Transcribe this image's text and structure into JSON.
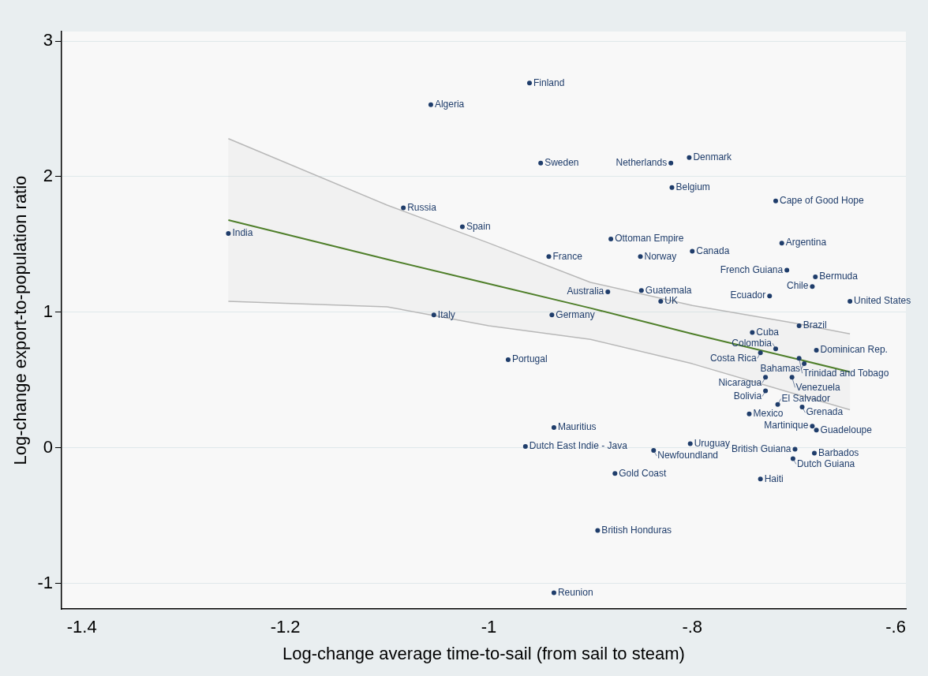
{
  "chart_data": {
    "type": "scatter",
    "xlabel": "Log-change average time-to-sail (from sail to steam)",
    "ylabel": "Log-change export-to-population ratio",
    "xlim": [
      -1.42,
      -0.59
    ],
    "xticks": [
      {
        "value": -1.4,
        "label": "-1.4"
      },
      {
        "value": -1.2,
        "label": "-1.2"
      },
      {
        "value": -1,
        "label": "-1"
      },
      {
        "value": -0.8,
        "label": "-.8"
      },
      {
        "value": -0.6,
        "label": "-.6"
      }
    ],
    "ylim": [
      -1.19,
      3.07
    ],
    "yticks": [
      -1,
      0,
      1,
      2,
      3
    ],
    "grid": "y",
    "legend": false,
    "series": [
      {
        "type": "scatter",
        "color": "#1f3d6b",
        "marker": "circle",
        "x": [
          -0.96,
          -1.057,
          -0.949,
          -0.803,
          -0.821,
          -0.82,
          -0.718,
          -1.084,
          -1.026,
          -1.256,
          -0.88,
          -0.712,
          -0.8,
          -0.941,
          -0.851,
          -0.707,
          -0.679,
          -0.682,
          -0.883,
          -0.85,
          -0.831,
          -0.724,
          -0.645,
          -1.054,
          -0.938,
          -0.695,
          -0.741,
          -0.718,
          -0.678,
          -0.733,
          -0.695,
          -0.69,
          -0.981,
          -0.728,
          -0.702,
          -0.728,
          -0.716,
          -0.692,
          -0.744,
          -0.682,
          -0.678,
          -0.936,
          -0.964,
          -0.802,
          -0.838,
          -0.699,
          -0.68,
          -0.701,
          -0.876,
          -0.733,
          -0.893,
          -0.936
        ],
        "values": [
          2.69,
          2.53,
          2.1,
          2.14,
          2.1,
          1.92,
          1.82,
          1.77,
          1.63,
          1.58,
          1.54,
          1.51,
          1.45,
          1.41,
          1.41,
          1.31,
          1.26,
          1.19,
          1.15,
          1.16,
          1.08,
          1.12,
          1.08,
          0.98,
          0.98,
          0.9,
          0.85,
          0.73,
          0.72,
          0.7,
          0.66,
          0.62,
          0.65,
          0.52,
          0.52,
          0.42,
          0.32,
          0.3,
          0.25,
          0.16,
          0.13,
          0.15,
          0.01,
          0.03,
          -0.02,
          -0.01,
          -0.04,
          -0.08,
          -0.19,
          -0.23,
          -0.61,
          -1.07
        ]
      },
      {
        "type": "line",
        "color": "#4f7f2a",
        "marker": "none",
        "x": [
          -1.256,
          -1.1,
          -1,
          -0.9,
          -0.8,
          -0.7,
          -0.645
        ],
        "values": [
          1.68,
          1.39,
          1.21,
          1.03,
          0.84,
          0.66,
          0.56
        ],
        "lower": [
          1.08,
          1.04,
          0.9,
          0.8,
          0.62,
          0.4,
          0.28
        ],
        "upper": [
          2.28,
          1.79,
          1.51,
          1.22,
          1.05,
          0.92,
          0.84
        ]
      }
    ],
    "annotations": [
      {
        "text": "Finland",
        "x": -0.96,
        "y": 2.69
      },
      {
        "text": "Algeria",
        "x": -1.057,
        "y": 2.53
      },
      {
        "text": "Sweden",
        "x": -0.949,
        "y": 2.1
      },
      {
        "text": "Denmark",
        "x": -0.803,
        "y": 2.14
      },
      {
        "text": "Netherlands",
        "x": -0.821,
        "y": 2.1
      },
      {
        "text": "Belgium",
        "x": -0.82,
        "y": 1.92
      },
      {
        "text": "Cape of Good Hope",
        "x": -0.718,
        "y": 1.82
      },
      {
        "text": "Russia",
        "x": -1.084,
        "y": 1.77
      },
      {
        "text": "Spain",
        "x": -1.026,
        "y": 1.63
      },
      {
        "text": "India",
        "x": -1.256,
        "y": 1.58
      },
      {
        "text": "Ottoman Empire",
        "x": -0.88,
        "y": 1.54
      },
      {
        "text": "Argentina",
        "x": -0.712,
        "y": 1.51
      },
      {
        "text": "Canada",
        "x": -0.8,
        "y": 1.45
      },
      {
        "text": "France",
        "x": -0.941,
        "y": 1.41
      },
      {
        "text": "Norway",
        "x": -0.851,
        "y": 1.41
      },
      {
        "text": "French Guiana",
        "x": -0.707,
        "y": 1.31
      },
      {
        "text": "Bermuda",
        "x": -0.679,
        "y": 1.26
      },
      {
        "text": "Chile",
        "x": -0.682,
        "y": 1.19
      },
      {
        "text": "Australia",
        "x": -0.883,
        "y": 1.15
      },
      {
        "text": "Guatemala",
        "x": -0.85,
        "y": 1.16
      },
      {
        "text": "UK",
        "x": -0.831,
        "y": 1.08
      },
      {
        "text": "Ecuador",
        "x": -0.724,
        "y": 1.12
      },
      {
        "text": "United States",
        "x": -0.645,
        "y": 1.08
      },
      {
        "text": "Italy",
        "x": -1.054,
        "y": 0.98
      },
      {
        "text": "Germany",
        "x": -0.938,
        "y": 0.98
      },
      {
        "text": "Brazil",
        "x": -0.695,
        "y": 0.9
      },
      {
        "text": "Cuba",
        "x": -0.741,
        "y": 0.85
      },
      {
        "text": "Colombia",
        "x": -0.718,
        "y": 0.73
      },
      {
        "text": "Dominican Rep.",
        "x": -0.678,
        "y": 0.72
      },
      {
        "text": "Costa Rica",
        "x": -0.733,
        "y": 0.7
      },
      {
        "text": "Trinidad and Tobago",
        "x": -0.695,
        "y": 0.66
      },
      {
        "text": "Bahamas",
        "x": -0.69,
        "y": 0.62
      },
      {
        "text": "Portugal",
        "x": -0.981,
        "y": 0.65
      },
      {
        "text": "Nicaragua",
        "x": -0.728,
        "y": 0.52
      },
      {
        "text": "Venezuela",
        "x": -0.702,
        "y": 0.52
      },
      {
        "text": "Bolivia",
        "x": -0.728,
        "y": 0.42
      },
      {
        "text": "El Salvador",
        "x": -0.716,
        "y": 0.32
      },
      {
        "text": "Grenada",
        "x": -0.692,
        "y": 0.3
      },
      {
        "text": "Mexico",
        "x": -0.744,
        "y": 0.25
      },
      {
        "text": "Martinique",
        "x": -0.682,
        "y": 0.16
      },
      {
        "text": "Guadeloupe",
        "x": -0.678,
        "y": 0.13
      },
      {
        "text": "Mauritius",
        "x": -0.936,
        "y": 0.15
      },
      {
        "text": "Dutch East Indie - Java",
        "x": -0.964,
        "y": 0.01
      },
      {
        "text": "Uruguay",
        "x": -0.802,
        "y": 0.03
      },
      {
        "text": "Newfoundland",
        "x": -0.838,
        "y": -0.02
      },
      {
        "text": "British Guiana",
        "x": -0.699,
        "y": -0.01
      },
      {
        "text": "Barbados",
        "x": -0.68,
        "y": -0.04
      },
      {
        "text": "Dutch Guiana",
        "x": -0.701,
        "y": -0.08
      },
      {
        "text": "Gold Coast",
        "x": -0.876,
        "y": -0.19
      },
      {
        "text": "Haiti",
        "x": -0.733,
        "y": -0.23
      },
      {
        "text": "British Honduras",
        "x": -0.893,
        "y": -0.61
      },
      {
        "text": "Reunion",
        "x": -0.936,
        "y": -1.07
      }
    ]
  }
}
